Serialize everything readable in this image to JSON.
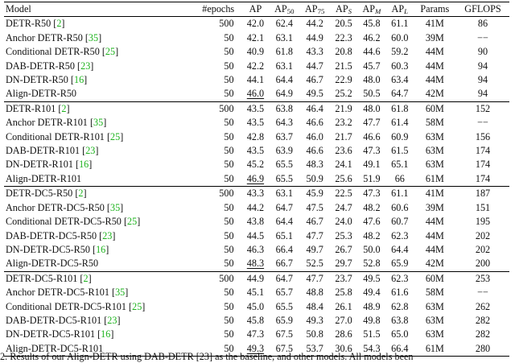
{
  "headers": {
    "model": "Model",
    "epochs": "#epochs",
    "ap": "AP",
    "ap50_base": "AP",
    "ap50_sub": "50",
    "ap75_base": "AP",
    "ap75_sub": "75",
    "aps_base": "AP",
    "aps_sub": "S",
    "apm_base": "AP",
    "apm_sub": "M",
    "apl_base": "AP",
    "apl_sub": "L",
    "params": "Params",
    "gflops": "GFLOPS"
  },
  "rows": [
    {
      "model": "DETR-R50",
      "ref": "2",
      "epochs": "500",
      "ap": "42.0",
      "ap50": "62.4",
      "ap75": "44.2",
      "aps": "20.5",
      "apm": "45.8",
      "apl": "61.1",
      "params": "41M",
      "gflops": "86"
    },
    {
      "model": "Anchor DETR-R50",
      "ref": "35",
      "epochs": "50",
      "ap": "42.1",
      "ap50": "63.1",
      "ap75": "44.9",
      "aps": "22.3",
      "apm": "46.2",
      "apl": "60.0",
      "params": "39M",
      "gflops": "−−"
    },
    {
      "model": "Conditional DETR-R50",
      "ref": "25",
      "epochs": "50",
      "ap": "40.9",
      "ap50": "61.8",
      "ap75": "43.3",
      "aps": "20.8",
      "apm": "44.6",
      "apl": "59.2",
      "params": "44M",
      "gflops": "90"
    },
    {
      "model": "DAB-DETR-R50",
      "ref": "23",
      "epochs": "50",
      "ap": "42.2",
      "ap50": "63.1",
      "ap75": "44.7",
      "aps": "21.5",
      "apm": "45.7",
      "apl": "60.3",
      "params": "44M",
      "gflops": "94"
    },
    {
      "model": "DN-DETR-R50",
      "ref": "16",
      "epochs": "50",
      "ap": "44.1",
      "ap50": "64.4",
      "ap75": "46.7",
      "aps": "22.9",
      "apm": "48.0",
      "apl": "63.4",
      "params": "44M",
      "gflops": "94"
    },
    {
      "model": "Align-DETR-R50",
      "ref": "",
      "epochs": "50",
      "ap": "46.0",
      "ap50": "64.9",
      "ap75": "49.5",
      "aps": "25.2",
      "apm": "50.5",
      "apl": "64.7",
      "params": "42M",
      "gflops": "94"
    },
    {
      "model": "DETR-R101",
      "ref": "2",
      "epochs": "500",
      "ap": "43.5",
      "ap50": "63.8",
      "ap75": "46.4",
      "aps": "21.9",
      "apm": "48.0",
      "apl": "61.8",
      "params": "60M",
      "gflops": "152"
    },
    {
      "model": "Anchor DETR-R101",
      "ref": "35",
      "epochs": "50",
      "ap": "43.5",
      "ap50": "64.3",
      "ap75": "46.6",
      "aps": "23.2",
      "apm": "47.7",
      "apl": "61.4",
      "params": "58M",
      "gflops": "−−"
    },
    {
      "model": "Conditional DETR-R101",
      "ref": "25",
      "epochs": "50",
      "ap": "42.8",
      "ap50": "63.7",
      "ap75": "46.0",
      "aps": "21.7",
      "apm": "46.6",
      "apl": "60.9",
      "params": "63M",
      "gflops": "156"
    },
    {
      "model": "DAB-DETR-R101",
      "ref": "23",
      "epochs": "50",
      "ap": "43.5",
      "ap50": "63.9",
      "ap75": "46.6",
      "aps": "23.6",
      "apm": "47.3",
      "apl": "61.5",
      "params": "63M",
      "gflops": "174"
    },
    {
      "model": "DN-DETR-R101",
      "ref": "16",
      "epochs": "50",
      "ap": "45.2",
      "ap50": "65.5",
      "ap75": "48.3",
      "aps": "24.1",
      "apm": "49.1",
      "apl": "65.1",
      "params": "63M",
      "gflops": "174"
    },
    {
      "model": "Align-DETR-R101",
      "ref": "",
      "epochs": "50",
      "ap": "46.9",
      "ap50": "65.5",
      "ap75": "50.9",
      "aps": "25.6",
      "apm": "51.9",
      "apl": "66",
      "params": "61M",
      "gflops": "174"
    },
    {
      "model": "DETR-DC5-R50",
      "ref": "2",
      "epochs": "500",
      "ap": "43.3",
      "ap50": "63.1",
      "ap75": "45.9",
      "aps": "22.5",
      "apm": "47.3",
      "apl": "61.1",
      "params": "41M",
      "gflops": "187"
    },
    {
      "model": "Anchor DETR-DC5-R50",
      "ref": "35",
      "epochs": "50",
      "ap": "44.2",
      "ap50": "64.7",
      "ap75": "47.5",
      "aps": "24.7",
      "apm": "48.2",
      "apl": "60.6",
      "params": "39M",
      "gflops": "151"
    },
    {
      "model": "Conditional DETR-DC5-R50",
      "ref": "25",
      "epochs": "50",
      "ap": "43.8",
      "ap50": "64.4",
      "ap75": "46.7",
      "aps": "24.0",
      "apm": "47.6",
      "apl": "60.7",
      "params": "44M",
      "gflops": "195"
    },
    {
      "model": "DAB-DETR-DC5-R50",
      "ref": "23",
      "epochs": "50",
      "ap": "44.5",
      "ap50": "65.1",
      "ap75": "47.7",
      "aps": "25.3",
      "apm": "48.2",
      "apl": "62.3",
      "params": "44M",
      "gflops": "202"
    },
    {
      "model": "DN-DETR-DC5-R50",
      "ref": "16",
      "epochs": "50",
      "ap": "46.3",
      "ap50": "66.4",
      "ap75": "49.7",
      "aps": "26.7",
      "apm": "50.0",
      "apl": "64.4",
      "params": "44M",
      "gflops": "202"
    },
    {
      "model": "Align-DETR-DC5-R50",
      "ref": "",
      "epochs": "50",
      "ap": "48.3",
      "ap50": "66.7",
      "ap75": "52.5",
      "aps": "29.7",
      "apm": "52.8",
      "apl": "65.9",
      "params": "42M",
      "gflops": "200"
    },
    {
      "model": "DETR-DC5-R101",
      "ref": "2",
      "epochs": "500",
      "ap": "44.9",
      "ap50": "64.7",
      "ap75": "47.7",
      "aps": "23.7",
      "apm": "49.5",
      "apl": "62.3",
      "params": "60M",
      "gflops": "253"
    },
    {
      "model": "Anchor DETR-DC5-R101",
      "ref": "35",
      "epochs": "50",
      "ap": "45.1",
      "ap50": "65.7",
      "ap75": "48.8",
      "aps": "25.8",
      "apm": "49.4",
      "apl": "61.6",
      "params": "58M",
      "gflops": "−−"
    },
    {
      "model": "Conditional DETR-DC5-R101",
      "ref": "25",
      "epochs": "50",
      "ap": "45.0",
      "ap50": "65.5",
      "ap75": "48.4",
      "aps": "26.1",
      "apm": "48.9",
      "apl": "62.8",
      "params": "63M",
      "gflops": "262"
    },
    {
      "model": "DAB-DETR-DC5-R101",
      "ref": "23",
      "epochs": "50",
      "ap": "45.8",
      "ap50": "65.9",
      "ap75": "49.3",
      "aps": "27.0",
      "apm": "49.8",
      "apl": "63.8",
      "params": "63M",
      "gflops": "282"
    },
    {
      "model": "DN-DETR-DC5-R101",
      "ref": "16",
      "epochs": "50",
      "ap": "47.3",
      "ap50": "67.5",
      "ap75": "50.8",
      "aps": "28.6",
      "apm": "51.5",
      "apl": "65.0",
      "params": "63M",
      "gflops": "282"
    },
    {
      "model": "Align-DETR-DC5-R101",
      "ref": "",
      "epochs": "50",
      "ap": "49.3",
      "ap50": "67.5",
      "ap75": "53.7",
      "aps": "30.6",
      "apm": "54.3",
      "apl": "66.4",
      "params": "61M",
      "gflops": "280"
    }
  ],
  "caption": "2. Results of our Align-DETR using DAB-DETR [23] as the baseline, and other models. All models been"
}
